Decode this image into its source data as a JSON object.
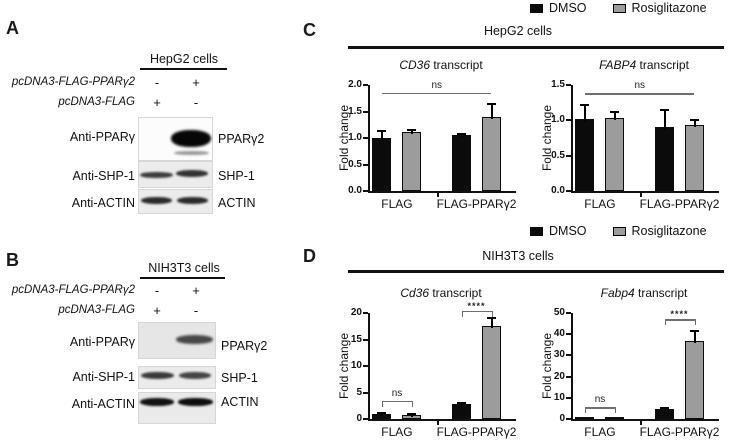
{
  "colors": {
    "dmso": "#0b0b0b",
    "rosiglitazone": "#9c9c9c",
    "axis": "#111111",
    "annotation_line": "#6e6e6e"
  },
  "legend": {
    "items": [
      {
        "name": "dmso",
        "label": "DMSO"
      },
      {
        "name": "rosiglitazone",
        "label": "Rosiglitazone"
      }
    ]
  },
  "panels": {
    "A": {
      "label": "A",
      "cell_line": "HepG2 cells",
      "rows": [
        {
          "name": "pcDNA3-FLAG-PPARγ2",
          "lane1": "-",
          "lane2": "+"
        },
        {
          "name": "pcDNA3-FLAG",
          "lane1": "+",
          "lane2": "-"
        }
      ],
      "blots": [
        {
          "antibody": "Anti-PPARγ",
          "band_label": "PPARγ2"
        },
        {
          "antibody": "Anti-SHP-1",
          "band_label": "SHP-1"
        },
        {
          "antibody": "Anti-ACTIN",
          "band_label": "ACTIN"
        }
      ]
    },
    "B": {
      "label": "B",
      "cell_line": "NIH3T3 cells",
      "rows": [
        {
          "name": "pcDNA3-FLAG-PPARγ2",
          "lane1": "-",
          "lane2": "+"
        },
        {
          "name": "pcDNA3-FLAG",
          "lane1": "+",
          "lane2": "-"
        }
      ],
      "blots": [
        {
          "antibody": "Anti-PPARγ",
          "band_label": "PPARγ2"
        },
        {
          "antibody": "Anti-SHP-1",
          "band_label": "SHP-1"
        },
        {
          "antibody": "Anti-ACTIN",
          "band_label": "ACTIN"
        }
      ]
    },
    "C": {
      "label": "C",
      "header": "HepG2 cells"
    },
    "D": {
      "label": "D",
      "header": "NIH3T3 cells"
    }
  },
  "chart_data": [
    {
      "id": "cd36-hepg2",
      "panel": "C",
      "type": "bar",
      "title": {
        "italic": "CD36",
        "rest": " transcript"
      },
      "ylabel": "Fold change",
      "ylim": [
        0,
        2.0
      ],
      "yticks": [
        0,
        0.5,
        1.0,
        1.5,
        2.0
      ],
      "ytick_labels": [
        "0.0",
        "0.5",
        "1.0",
        "1.5",
        "2.0"
      ],
      "categories": [
        "FLAG",
        "FLAG-PPARγ2"
      ],
      "series": [
        {
          "name": "DMSO",
          "values": [
            1.0,
            1.05
          ],
          "errors": [
            0.13,
            0.02
          ]
        },
        {
          "name": "Rosiglitazone",
          "values": [
            1.12,
            1.4
          ],
          "errors": [
            0.03,
            0.24
          ]
        }
      ],
      "annotations": [
        {
          "label": "ns",
          "from_bar": 0,
          "to_bar": 3,
          "y": 1.85,
          "end_ticks": false
        }
      ],
      "legend_position": "top-right",
      "grid": false
    },
    {
      "id": "fabp4-hepg2",
      "panel": "C",
      "type": "bar",
      "title": {
        "italic": "FABP4",
        "rest": " transcript"
      },
      "ylabel": "Fold change",
      "ylim": [
        0,
        1.5
      ],
      "yticks": [
        0,
        0.5,
        1.0,
        1.5
      ],
      "ytick_labels": [
        "0.0",
        "0.5",
        "1.0",
        "1.5"
      ],
      "categories": [
        "FLAG",
        "FLAG-PPARγ2"
      ],
      "series": [
        {
          "name": "DMSO",
          "values": [
            1.02,
            0.9
          ],
          "errors": [
            0.2,
            0.24
          ]
        },
        {
          "name": "Rosiglitazone",
          "values": [
            1.03,
            0.94
          ],
          "errors": [
            0.09,
            0.07
          ]
        }
      ],
      "annotations": [
        {
          "label": "ns",
          "from_bar": 0,
          "to_bar": 3,
          "y": 1.38,
          "end_ticks": false
        }
      ],
      "legend_position": "top-right",
      "grid": false
    },
    {
      "id": "cd36-nih3t3",
      "panel": "D",
      "type": "bar",
      "title": {
        "italic": "Cd36",
        "rest": " transcript"
      },
      "ylabel": "Fold change",
      "ylim": [
        0,
        20
      ],
      "yticks": [
        0,
        5,
        10,
        15,
        20
      ],
      "ytick_labels": [
        "0",
        "5",
        "10",
        "15",
        "20"
      ],
      "categories": [
        "FLAG",
        "FLAG-PPARγ2"
      ],
      "series": [
        {
          "name": "DMSO",
          "values": [
            1.0,
            2.8
          ],
          "errors": [
            0.15,
            0.15
          ]
        },
        {
          "name": "Rosiglitazone",
          "values": [
            0.8,
            17.5
          ],
          "errors": [
            0.2,
            1.5
          ]
        }
      ],
      "annotations": [
        {
          "label": "ns",
          "from_bar": 0,
          "to_bar": 1,
          "y": 3.4,
          "end_ticks": true
        },
        {
          "label": "****",
          "from_bar": 2,
          "to_bar": 3,
          "y": 20.4,
          "end_ticks": true
        }
      ],
      "legend_position": "top-right",
      "grid": false
    },
    {
      "id": "fabp4-nih3t3",
      "panel": "D",
      "type": "bar",
      "title": {
        "italic": "Fabp4",
        "rest": " transcript"
      },
      "ylabel": "Fold change",
      "ylim": [
        0,
        50
      ],
      "yticks": [
        0,
        10,
        20,
        30,
        40,
        50
      ],
      "ytick_labels": [
        "0",
        "10",
        "20",
        "30",
        "40",
        "50"
      ],
      "categories": [
        "FLAG",
        "FLAG-PPARγ2"
      ],
      "series": [
        {
          "name": "DMSO",
          "values": [
            0.9,
            4.5
          ],
          "errors": [
            0.15,
            0.5
          ]
        },
        {
          "name": "Rosiglitazone",
          "values": [
            1.0,
            37.0
          ],
          "errors": [
            0.2,
            4.5
          ]
        }
      ],
      "annotations": [
        {
          "label": "ns",
          "from_bar": 0,
          "to_bar": 1,
          "y": 5.5,
          "end_ticks": true
        },
        {
          "label": "****",
          "from_bar": 2,
          "to_bar": 3,
          "y": 47,
          "end_ticks": true
        }
      ],
      "legend_position": "top-right",
      "grid": false
    }
  ]
}
